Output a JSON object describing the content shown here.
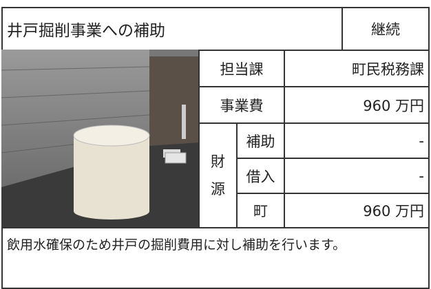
{
  "header": {
    "title": "井戸掘削事業への補助",
    "status": "継続"
  },
  "table": {
    "rows": [
      [
        "担当課",
        "町民税務課"
      ],
      [
        "事業費",
        "960 万円"
      ]
    ],
    "funding": {
      "label": "財源",
      "rows": [
        [
          "補助",
          "-"
        ],
        [
          "借入",
          "-"
        ],
        [
          "町",
          "960 万円"
        ]
      ]
    }
  },
  "description": "飲用水確保のため井戸の掘削費用に対し補助を行います。"
}
